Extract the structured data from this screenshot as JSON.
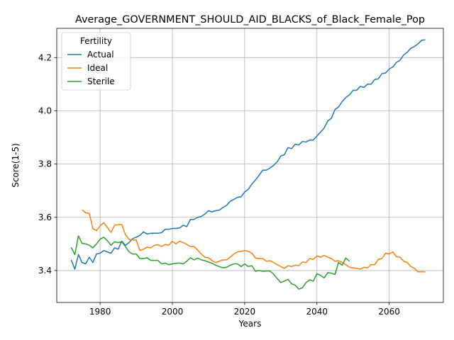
{
  "chart_data": {
    "type": "line",
    "title": "Average_GOVERNMENT_SHOULD_AID_BLACKS_of_Black_Female_Pop",
    "xlabel": "Years",
    "ylabel": "Score(1-5)",
    "xlim": [
      1968,
      2075
    ],
    "ylim": [
      3.28,
      4.31
    ],
    "xticks": [
      1980,
      2000,
      2020,
      2040,
      2060
    ],
    "yticks": [
      3.4,
      3.6,
      3.8,
      4.0,
      4.2
    ],
    "xtick_labels": [
      "1980",
      "2000",
      "2020",
      "2040",
      "2060"
    ],
    "ytick_labels": [
      "3.4",
      "3.6",
      "3.8",
      "4.0",
      "4.2"
    ],
    "grid": true,
    "legend": {
      "title": "Fertility",
      "placement": "top-left"
    },
    "series": [
      {
        "name": "Actual",
        "color": "#1f77b4",
        "x": [
          1972,
          1973,
          1974,
          1975,
          1976,
          1977,
          1978,
          1979,
          1980,
          1981,
          1982,
          1983,
          1984,
          1985,
          1986,
          1987,
          1988,
          1989,
          1990,
          1991,
          1992,
          1993,
          1994,
          1995,
          1996,
          1997,
          1998,
          1999,
          2000,
          2001,
          2002,
          2003,
          2004,
          2005,
          2006,
          2007,
          2008,
          2009,
          2010,
          2011,
          2012,
          2013,
          2014,
          2015,
          2016,
          2017,
          2018,
          2019,
          2020,
          2021,
          2022,
          2023,
          2024,
          2025,
          2026,
          2027,
          2028,
          2029,
          2030,
          2031,
          2032,
          2033,
          2034,
          2035,
          2036,
          2037,
          2038,
          2039,
          2040,
          2041,
          2042,
          2043,
          2044,
          2045,
          2046,
          2047,
          2048,
          2049,
          2050,
          2051,
          2052,
          2053,
          2054,
          2055,
          2056,
          2057,
          2058,
          2059,
          2060,
          2061,
          2062,
          2063,
          2064,
          2065,
          2066,
          2067,
          2068,
          2069,
          2070
        ],
        "values": [
          3.44,
          3.405,
          3.46,
          3.43,
          3.425,
          3.45,
          3.43,
          3.462,
          3.465,
          3.475,
          3.47,
          3.465,
          3.485,
          3.48,
          3.51,
          3.495,
          3.505,
          3.52,
          3.525,
          3.532,
          3.545,
          3.537,
          3.54,
          3.54,
          3.54,
          3.542,
          3.555,
          3.555,
          3.558,
          3.558,
          3.56,
          3.57,
          3.565,
          3.592,
          3.592,
          3.6,
          3.603,
          3.612,
          3.625,
          3.62,
          3.625,
          3.627,
          3.637,
          3.645,
          3.66,
          3.667,
          3.675,
          3.677,
          3.695,
          3.705,
          3.725,
          3.74,
          3.758,
          3.777,
          3.777,
          3.785,
          3.795,
          3.808,
          3.83,
          3.835,
          3.862,
          3.858,
          3.875,
          3.872,
          3.885,
          3.883,
          3.89,
          3.89,
          3.905,
          3.92,
          3.935,
          3.962,
          3.972,
          4.005,
          4.015,
          4.035,
          4.05,
          4.06,
          4.077,
          4.077,
          4.092,
          4.088,
          4.1,
          4.1,
          4.118,
          4.12,
          4.14,
          4.142,
          4.157,
          4.165,
          4.182,
          4.19,
          4.21,
          4.22,
          4.235,
          4.242,
          4.252,
          4.265,
          4.267
        ]
      },
      {
        "name": "Ideal",
        "color": "#ff7f0e",
        "x": [
          1975,
          1976,
          1977,
          1978,
          1979,
          1980,
          1981,
          1982,
          1983,
          1984,
          1985,
          1986,
          1987,
          1988,
          1989,
          1990,
          1991,
          1992,
          1993,
          1994,
          1995,
          1996,
          1997,
          1998,
          1999,
          2000,
          2001,
          2002,
          2003,
          2004,
          2005,
          2006,
          2007,
          2008,
          2009,
          2010,
          2011,
          2012,
          2013,
          2014,
          2015,
          2016,
          2017,
          2018,
          2019,
          2020,
          2021,
          2022,
          2023,
          2024,
          2025,
          2026,
          2027,
          2028,
          2029,
          2030,
          2031,
          2032,
          2033,
          2034,
          2035,
          2036,
          2037,
          2038,
          2039,
          2040,
          2041,
          2042,
          2043,
          2044,
          2045,
          2046,
          2047,
          2048,
          2049,
          2050,
          2051,
          2052,
          2053,
          2054,
          2055,
          2056,
          2057,
          2058,
          2059,
          2060,
          2061,
          2062,
          2063,
          2064,
          2065,
          2066,
          2067,
          2068,
          2069,
          2070
        ],
        "values": [
          3.628,
          3.617,
          3.615,
          3.557,
          3.55,
          3.568,
          3.58,
          3.562,
          3.543,
          3.57,
          3.572,
          3.573,
          3.535,
          3.517,
          3.515,
          3.515,
          3.475,
          3.48,
          3.488,
          3.485,
          3.495,
          3.497,
          3.49,
          3.498,
          3.495,
          3.51,
          3.5,
          3.51,
          3.505,
          3.498,
          3.49,
          3.49,
          3.477,
          3.462,
          3.45,
          3.448,
          3.437,
          3.43,
          3.435,
          3.44,
          3.44,
          3.45,
          3.462,
          3.47,
          3.472,
          3.475,
          3.472,
          3.465,
          3.447,
          3.445,
          3.445,
          3.435,
          3.437,
          3.43,
          3.422,
          3.415,
          3.408,
          3.418,
          3.415,
          3.42,
          3.418,
          3.432,
          3.43,
          3.445,
          3.442,
          3.455,
          3.45,
          3.457,
          3.45,
          3.445,
          3.435,
          3.437,
          3.43,
          3.422,
          3.412,
          3.41,
          3.408,
          3.405,
          3.412,
          3.41,
          3.422,
          3.422,
          3.442,
          3.445,
          3.465,
          3.462,
          3.47,
          3.452,
          3.45,
          3.435,
          3.43,
          3.415,
          3.408,
          3.395,
          3.395,
          3.395
        ]
      },
      {
        "name": "Sterile",
        "color": "#2ca02c",
        "x": [
          1972,
          1973,
          1974,
          1975,
          1976,
          1977,
          1978,
          1979,
          1980,
          1981,
          1982,
          1983,
          1984,
          1985,
          1986,
          1987,
          1988,
          1989,
          1990,
          1991,
          1992,
          1993,
          1994,
          1995,
          1996,
          1997,
          1998,
          1999,
          2000,
          2001,
          2002,
          2003,
          2004,
          2005,
          2006,
          2007,
          2008,
          2009,
          2010,
          2011,
          2012,
          2013,
          2014,
          2015,
          2016,
          2017,
          2018,
          2019,
          2020,
          2021,
          2022,
          2023,
          2024,
          2025,
          2026,
          2027,
          2028,
          2029,
          2030,
          2031,
          2032,
          2033,
          2034,
          2035,
          2036,
          2037,
          2038,
          2039,
          2040,
          2041,
          2042,
          2043,
          2044,
          2045,
          2046,
          2047,
          2048,
          2049
        ],
        "values": [
          3.487,
          3.46,
          3.53,
          3.502,
          3.5,
          3.495,
          3.485,
          3.5,
          3.518,
          3.525,
          3.512,
          3.495,
          3.508,
          3.505,
          3.508,
          3.49,
          3.47,
          3.462,
          3.462,
          3.445,
          3.445,
          3.448,
          3.438,
          3.438,
          3.438,
          3.425,
          3.428,
          3.422,
          3.425,
          3.427,
          3.428,
          3.425,
          3.435,
          3.448,
          3.44,
          3.447,
          3.44,
          3.437,
          3.432,
          3.427,
          3.42,
          3.415,
          3.41,
          3.412,
          3.42,
          3.425,
          3.425,
          3.415,
          3.425,
          3.415,
          3.418,
          3.397,
          3.4,
          3.397,
          3.398,
          3.398,
          3.387,
          3.37,
          3.355,
          3.36,
          3.367,
          3.35,
          3.345,
          3.33,
          3.335,
          3.355,
          3.365,
          3.36,
          3.388,
          3.382,
          3.372,
          3.392,
          3.39,
          3.385,
          3.43,
          3.42,
          3.447,
          3.435
        ]
      }
    ]
  }
}
